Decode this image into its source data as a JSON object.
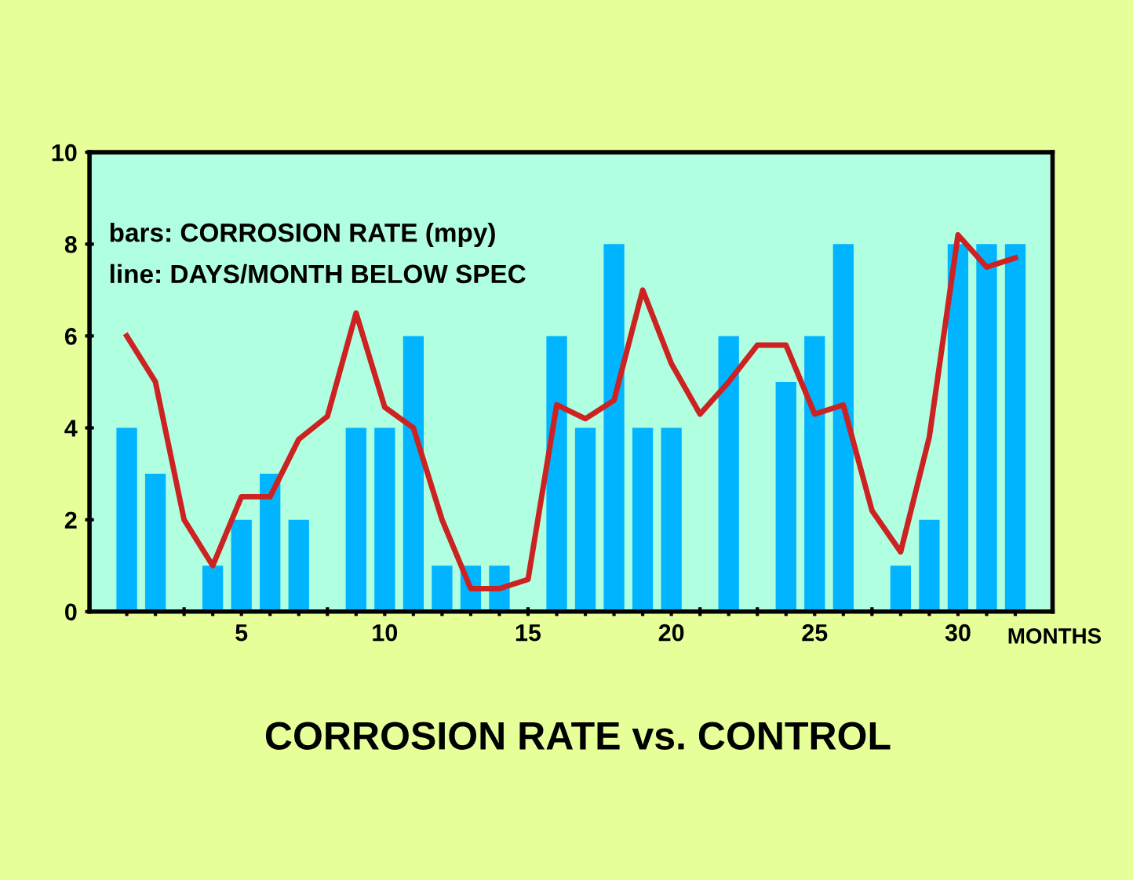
{
  "chart_data": {
    "type": "bar",
    "title": "CORROSION RATE vs. CONTROL",
    "xlabel": "MONTHS",
    "annotations": [
      "bars: CORROSION RATE (mpy)",
      "line: DAYS/MONTH BELOW SPEC"
    ],
    "x": [
      1,
      2,
      3,
      4,
      5,
      6,
      7,
      8,
      9,
      10,
      11,
      12,
      13,
      14,
      15,
      16,
      17,
      18,
      19,
      20,
      21,
      22,
      23,
      24,
      25,
      26,
      27,
      28,
      29,
      30,
      31,
      32
    ],
    "series": [
      {
        "color": "#00b4ff",
        "values": [
          4,
          3,
          null,
          1,
          2,
          3,
          2,
          null,
          4,
          4,
          6,
          1,
          1,
          1,
          null,
          6,
          4,
          8,
          4,
          4,
          null,
          6,
          null,
          5,
          6,
          8,
          null,
          1,
          2,
          8,
          8,
          8
        ]
      },
      {
        "type": "line",
        "color": "#cc2222",
        "values": [
          6,
          5,
          2,
          1,
          2.5,
          2.5,
          3.75,
          4.25,
          6.5,
          4.45,
          4,
          2,
          0.5,
          0.5,
          0.7,
          4.5,
          4.2,
          4.6,
          7,
          5.4,
          4.3,
          5,
          5.8,
          5.8,
          4.3,
          4.5,
          2.2,
          1.3,
          3.8,
          8.2,
          7.5,
          7.7
        ]
      }
    ],
    "xlim": [
      -0.3,
      33.3
    ],
    "xticks": [
      {
        "value": 1,
        "label": null
      },
      {
        "value": 2,
        "label": null
      },
      {
        "value": 3,
        "label": null
      },
      {
        "value": 4,
        "label": null
      },
      5,
      {
        "value": 6,
        "label": null
      },
      {
        "value": 7,
        "label": null
      },
      {
        "value": 8,
        "label": null
      },
      {
        "value": 9,
        "label": null
      },
      10,
      {
        "value": 11,
        "label": null
      },
      {
        "value": 12,
        "label": null
      },
      {
        "value": 13,
        "label": null
      },
      {
        "value": 14,
        "label": null
      },
      15,
      {
        "value": 16,
        "label": null
      },
      {
        "value": 17,
        "label": null
      },
      {
        "value": 18,
        "label": null
      },
      {
        "value": 19,
        "label": null
      },
      20,
      {
        "value": 21,
        "label": null
      },
      {
        "value": 22,
        "label": null
      },
      {
        "value": 23,
        "label": null
      },
      {
        "value": 24,
        "label": null
      },
      25,
      {
        "value": 26,
        "label": null
      },
      {
        "value": 27,
        "label": null
      },
      {
        "value": 28,
        "label": null
      },
      {
        "value": 29,
        "label": null
      },
      30,
      {
        "value": 31,
        "label": null
      },
      {
        "value": 32,
        "label": null
      }
    ],
    "ylim": [
      0,
      10
    ],
    "yticks": [
      0,
      2,
      4,
      6,
      8,
      10
    ],
    "grid": false,
    "legend": false,
    "marker": "none",
    "line_style": "solid"
  }
}
